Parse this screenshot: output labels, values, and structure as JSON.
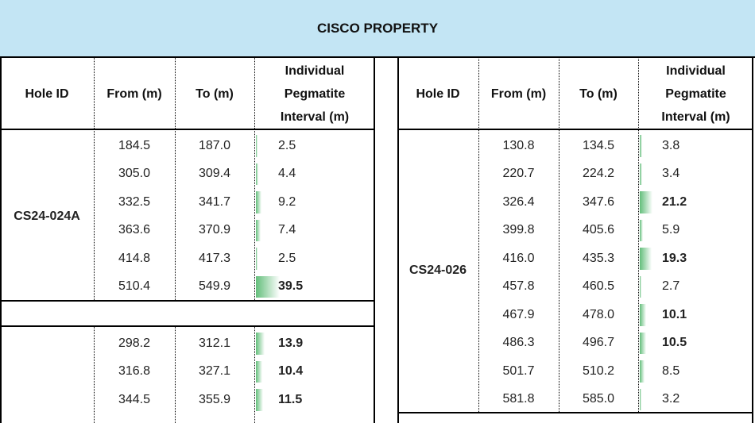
{
  "title": "CISCO PROPERTY",
  "headers": [
    "Hole ID",
    "From (m)",
    "To (m)",
    "Individual Pegmatite Interval (m)"
  ],
  "tables": [
    {
      "groups": [
        {
          "hole_id": "CS24-024A",
          "rows": [
            {
              "from": "184.5",
              "to": "187.0",
              "interval": "2.5",
              "bold": false
            },
            {
              "from": "305.0",
              "to": "309.4",
              "interval": "4.4",
              "bold": false
            },
            {
              "from": "332.5",
              "to": "341.7",
              "interval": "9.2",
              "bold": false
            },
            {
              "from": "363.6",
              "to": "370.9",
              "interval": "7.4",
              "bold": false
            },
            {
              "from": "414.8",
              "to": "417.3",
              "interval": "2.5",
              "bold": false
            },
            {
              "from": "510.4",
              "to": "549.9",
              "interval": "39.5",
              "bold": true
            }
          ]
        },
        {
          "rows": [
            {
              "from": "298.2",
              "to": "312.1",
              "interval": "13.9",
              "bold": true
            },
            {
              "from": "316.8",
              "to": "327.1",
              "interval": "10.4",
              "bold": true
            },
            {
              "from": "344.5",
              "to": "355.9",
              "interval": "11.5",
              "bold": true
            }
          ]
        }
      ]
    },
    {
      "groups": [
        {
          "hole_id": "CS24-026",
          "rows": [
            {
              "from": "130.8",
              "to": "134.5",
              "interval": "3.8",
              "bold": false
            },
            {
              "from": "220.7",
              "to": "224.2",
              "interval": "3.4",
              "bold": false
            },
            {
              "from": "326.4",
              "to": "347.6",
              "interval": "21.2",
              "bold": true
            },
            {
              "from": "399.8",
              "to": "405.6",
              "interval": "5.9",
              "bold": false
            },
            {
              "from": "416.0",
              "to": "435.3",
              "interval": "19.3",
              "bold": true
            },
            {
              "from": "457.8",
              "to": "460.5",
              "interval": "2.7",
              "bold": false
            },
            {
              "from": "467.9",
              "to": "478.0",
              "interval": "10.1",
              "bold": true
            },
            {
              "from": "486.3",
              "to": "496.7",
              "interval": "10.5",
              "bold": true
            },
            {
              "from": "501.7",
              "to": "510.2",
              "interval": "8.5",
              "bold": false
            },
            {
              "from": "581.8",
              "to": "585.0",
              "interval": "3.2",
              "bold": false
            }
          ]
        }
      ]
    }
  ]
}
